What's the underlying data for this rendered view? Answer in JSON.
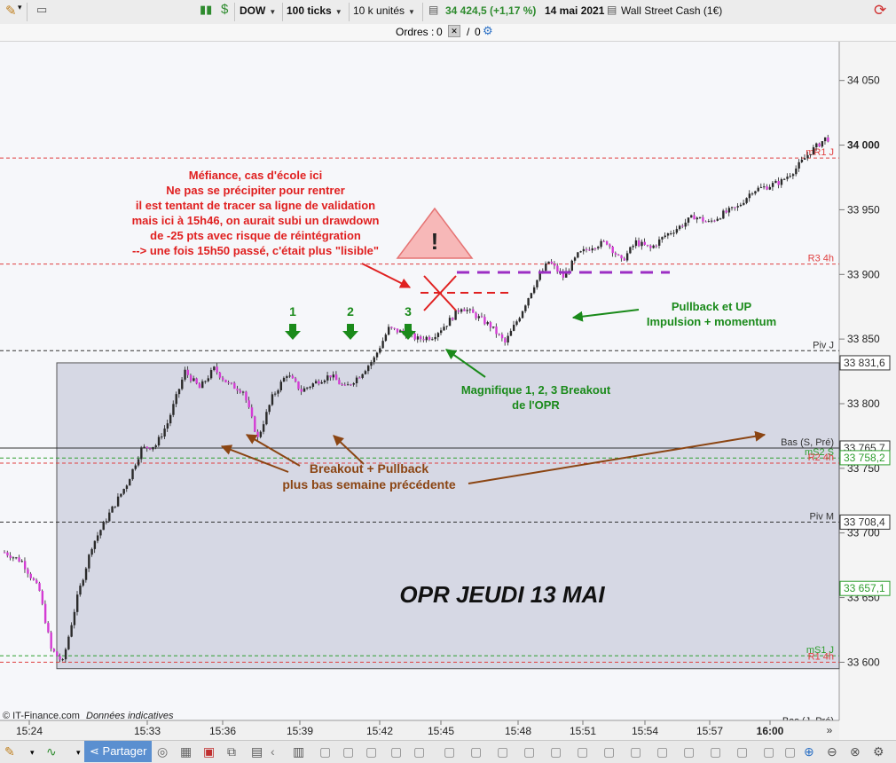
{
  "toolbar": {
    "symbol": "DOW",
    "ticks": "100 ticks",
    "units": "10 k unités",
    "price_info": "34 424,5 (+1,17 %)",
    "date": "14 mai 2021",
    "instrument": "Wall Street Cash (1€)",
    "colors": {
      "positive": "#2e8b2e"
    }
  },
  "orders_bar": {
    "label": "Ordres :",
    "count_a": "0",
    "separator": "/",
    "count_b": "0"
  },
  "chart_data": {
    "type": "candlestick",
    "y_range": [
      33555,
      34080
    ],
    "y_ticks": [
      {
        "value": 34050,
        "label": "34 050"
      },
      {
        "value": 34000,
        "label": "34 000"
      },
      {
        "value": 33950,
        "label": "33 950"
      },
      {
        "value": 33900,
        "label": "33 900"
      },
      {
        "value": 33850,
        "label": "33 850"
      },
      {
        "value": 33800,
        "label": "33 800"
      },
      {
        "value": 33750,
        "label": "33 750"
      },
      {
        "value": 33700,
        "label": "33 700"
      },
      {
        "value": 33650,
        "label": "33 650"
      },
      {
        "value": 33600,
        "label": "33 600"
      }
    ],
    "x_ticks": [
      {
        "label": "15:24",
        "bold": false
      },
      {
        "label": "15:33",
        "bold": false
      },
      {
        "label": "15:36",
        "bold": false
      },
      {
        "label": "15:39",
        "bold": false
      },
      {
        "label": "15:42",
        "bold": false
      },
      {
        "label": "15:45",
        "bold": false
      },
      {
        "label": "15:48",
        "bold": false
      },
      {
        "label": "15:51",
        "bold": false
      },
      {
        "label": "15:54",
        "bold": false
      },
      {
        "label": "15:57",
        "bold": false
      },
      {
        "label": "16:00",
        "bold": true
      }
    ],
    "price_path": [
      [
        0,
        33685
      ],
      [
        6,
        33678
      ],
      [
        12,
        33655
      ],
      [
        16,
        33610
      ],
      [
        20,
        33600
      ],
      [
        25,
        33650
      ],
      [
        30,
        33690
      ],
      [
        36,
        33715
      ],
      [
        42,
        33738
      ],
      [
        47,
        33765
      ],
      [
        52,
        33768
      ],
      [
        56,
        33785
      ],
      [
        62,
        33825
      ],
      [
        67,
        33812
      ],
      [
        72,
        33827
      ],
      [
        77,
        33815
      ],
      [
        82,
        33810
      ],
      [
        87,
        33773
      ],
      [
        92,
        33805
      ],
      [
        97,
        33823
      ],
      [
        102,
        33810
      ],
      [
        108,
        33818
      ],
      [
        112,
        33822
      ],
      [
        117,
        33812
      ],
      [
        122,
        33822
      ],
      [
        127,
        33835
      ],
      [
        132,
        33858
      ],
      [
        137,
        33855
      ],
      [
        142,
        33850
      ],
      [
        147,
        33852
      ],
      [
        152,
        33862
      ],
      [
        157,
        33875
      ],
      [
        162,
        33868
      ],
      [
        167,
        33860
      ],
      [
        172,
        33847
      ],
      [
        177,
        33868
      ],
      [
        182,
        33892
      ],
      [
        187,
        33910
      ],
      [
        192,
        33898
      ],
      [
        197,
        33915
      ],
      [
        202,
        33922
      ],
      [
        207,
        33925
      ],
      [
        212,
        33910
      ],
      [
        217,
        33925
      ],
      [
        222,
        33920
      ],
      [
        227,
        33930
      ],
      [
        232,
        33937
      ],
      [
        237,
        33945
      ],
      [
        242,
        33940
      ],
      [
        247,
        33947
      ],
      [
        252,
        33952
      ],
      [
        257,
        33965
      ],
      [
        262,
        33968
      ],
      [
        267,
        33972
      ],
      [
        272,
        33982
      ],
      [
        277,
        33995
      ],
      [
        282,
        34005
      ]
    ],
    "bearish_color": "#d43cd4",
    "bullish_color": "#2a2a2a",
    "levels": [
      {
        "name": "mR1 J",
        "value": 33990,
        "color": "#e04040",
        "style": "dashed"
      },
      {
        "name": "R3 4h",
        "value": 33908,
        "color": "#e04040",
        "style": "dashed"
      },
      {
        "name": "Piv J",
        "value": 33841,
        "color": "#333333",
        "style": "dashed"
      },
      {
        "name": "Bas (S, Pré)",
        "value": 33765.7,
        "color": "#333333",
        "style": "solid"
      },
      {
        "name": "mS2 S",
        "value": 33758,
        "color": "#2e9e2e",
        "style": "dashed"
      },
      {
        "name": "R2 4h",
        "value": 33754,
        "color": "#e04040",
        "style": "dashed"
      },
      {
        "name": "Piv M",
        "value": 33708.4,
        "color": "#333333",
        "style": "dashed"
      },
      {
        "name": "mS1 J",
        "value": 33605,
        "color": "#2e9e2e",
        "style": "dashed"
      },
      {
        "name": "R1 4h",
        "value": 33600,
        "color": "#e04040",
        "style": "dashed"
      }
    ],
    "axis_boxes": [
      {
        "label": "33 831,6",
        "value": 33831.6,
        "color": "#333333"
      },
      {
        "label": "33 765,7",
        "value": 33765.7,
        "color": "#333333"
      },
      {
        "label": "33 758,2",
        "value": 33758.2,
        "color": "#2e9e2e"
      },
      {
        "label": "33 708,4",
        "value": 33708.4,
        "color": "#333333"
      },
      {
        "label": "33 657,1",
        "value": 33657.1,
        "color": "#2e9e2e"
      }
    ],
    "opr_box": {
      "low": 33595,
      "high": 33831.6
    },
    "opr_label": "OPR JEUDI 13 MAI",
    "breakout_numbers": [
      "1",
      "2",
      "3"
    ],
    "annotations": {
      "warning_text": [
        "Méfiance, cas d'école ici",
        "Ne pas se précipiter pour rentrer",
        "il est tentant de tracer sa ligne de validation",
        "mais ici à 15h46, on aurait subi un drawdown",
        "de -25 pts avec risque de réintégration",
        "--> une fois 15h50 passé, c'était plus \"lisible\""
      ],
      "warning_symbol": "!",
      "pullback_up": [
        "Pullback et UP",
        "Impulsion + momentum"
      ],
      "magnifique": [
        "Magnifique 1, 2, 3 Breakout",
        "de l'OPR"
      ],
      "breakout_pullback": [
        "Breakout + Pullback",
        "plus bas semaine précédente"
      ]
    },
    "footer_credit": "© IT-Finance.com",
    "footer_note": "Données indicatives",
    "bottom_right_level": "Bas (J, Pré)"
  },
  "bottombar": {
    "share_label": "Partager",
    "more_label": "»"
  }
}
